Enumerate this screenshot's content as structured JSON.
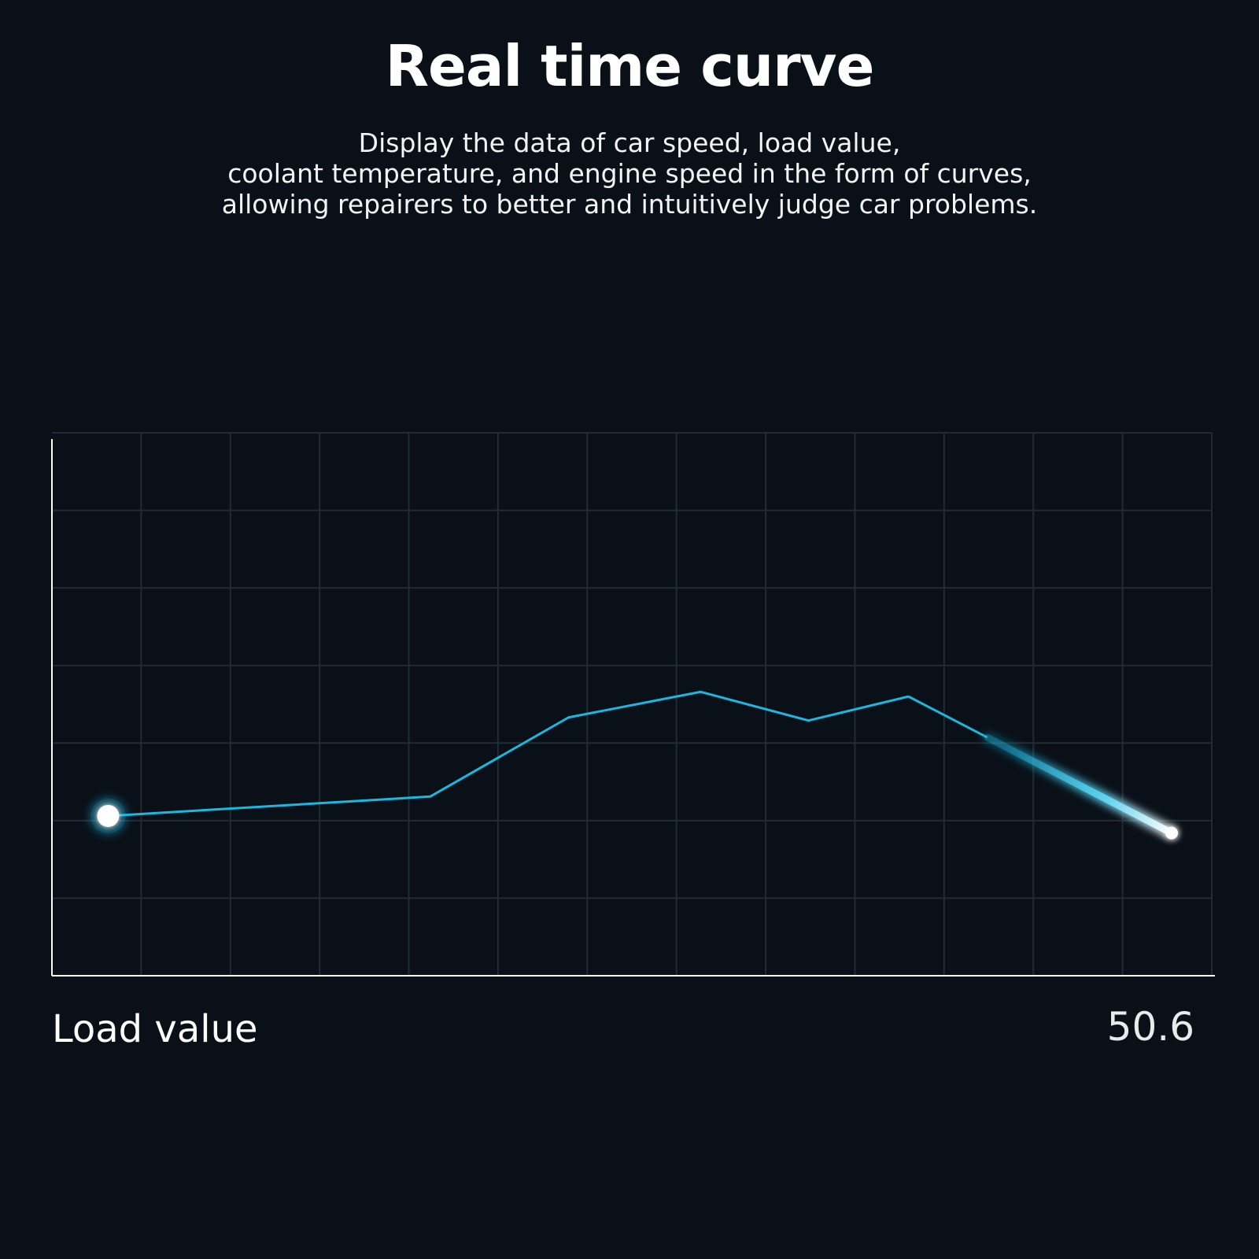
{
  "header": {
    "title": "Real time curve",
    "subtitle_lines": [
      "Display the data of car speed, load value,",
      "coolant temperature, and engine speed in the form of curves,",
      "allowing repairers to better and intuitively judge car problems."
    ]
  },
  "colors": {
    "background": "#0a1018",
    "line": "#1ab8e0",
    "grid": "#222a33",
    "axis": "#ffffff",
    "marker": "#ffffff"
  },
  "chart_data": {
    "type": "line",
    "title": "",
    "xlabel": "",
    "ylabel": "",
    "xlim": [
      0,
      13
    ],
    "ylim": [
      0,
      7
    ],
    "grid": true,
    "x": [
      0.63,
      4.24,
      5.79,
      7.27,
      8.48,
      9.6,
      12.55
    ],
    "values": [
      2.06,
      2.31,
      3.33,
      3.66,
      3.29,
      3.6,
      1.84
    ],
    "series_label": "Load value",
    "current_value": "50.6"
  }
}
